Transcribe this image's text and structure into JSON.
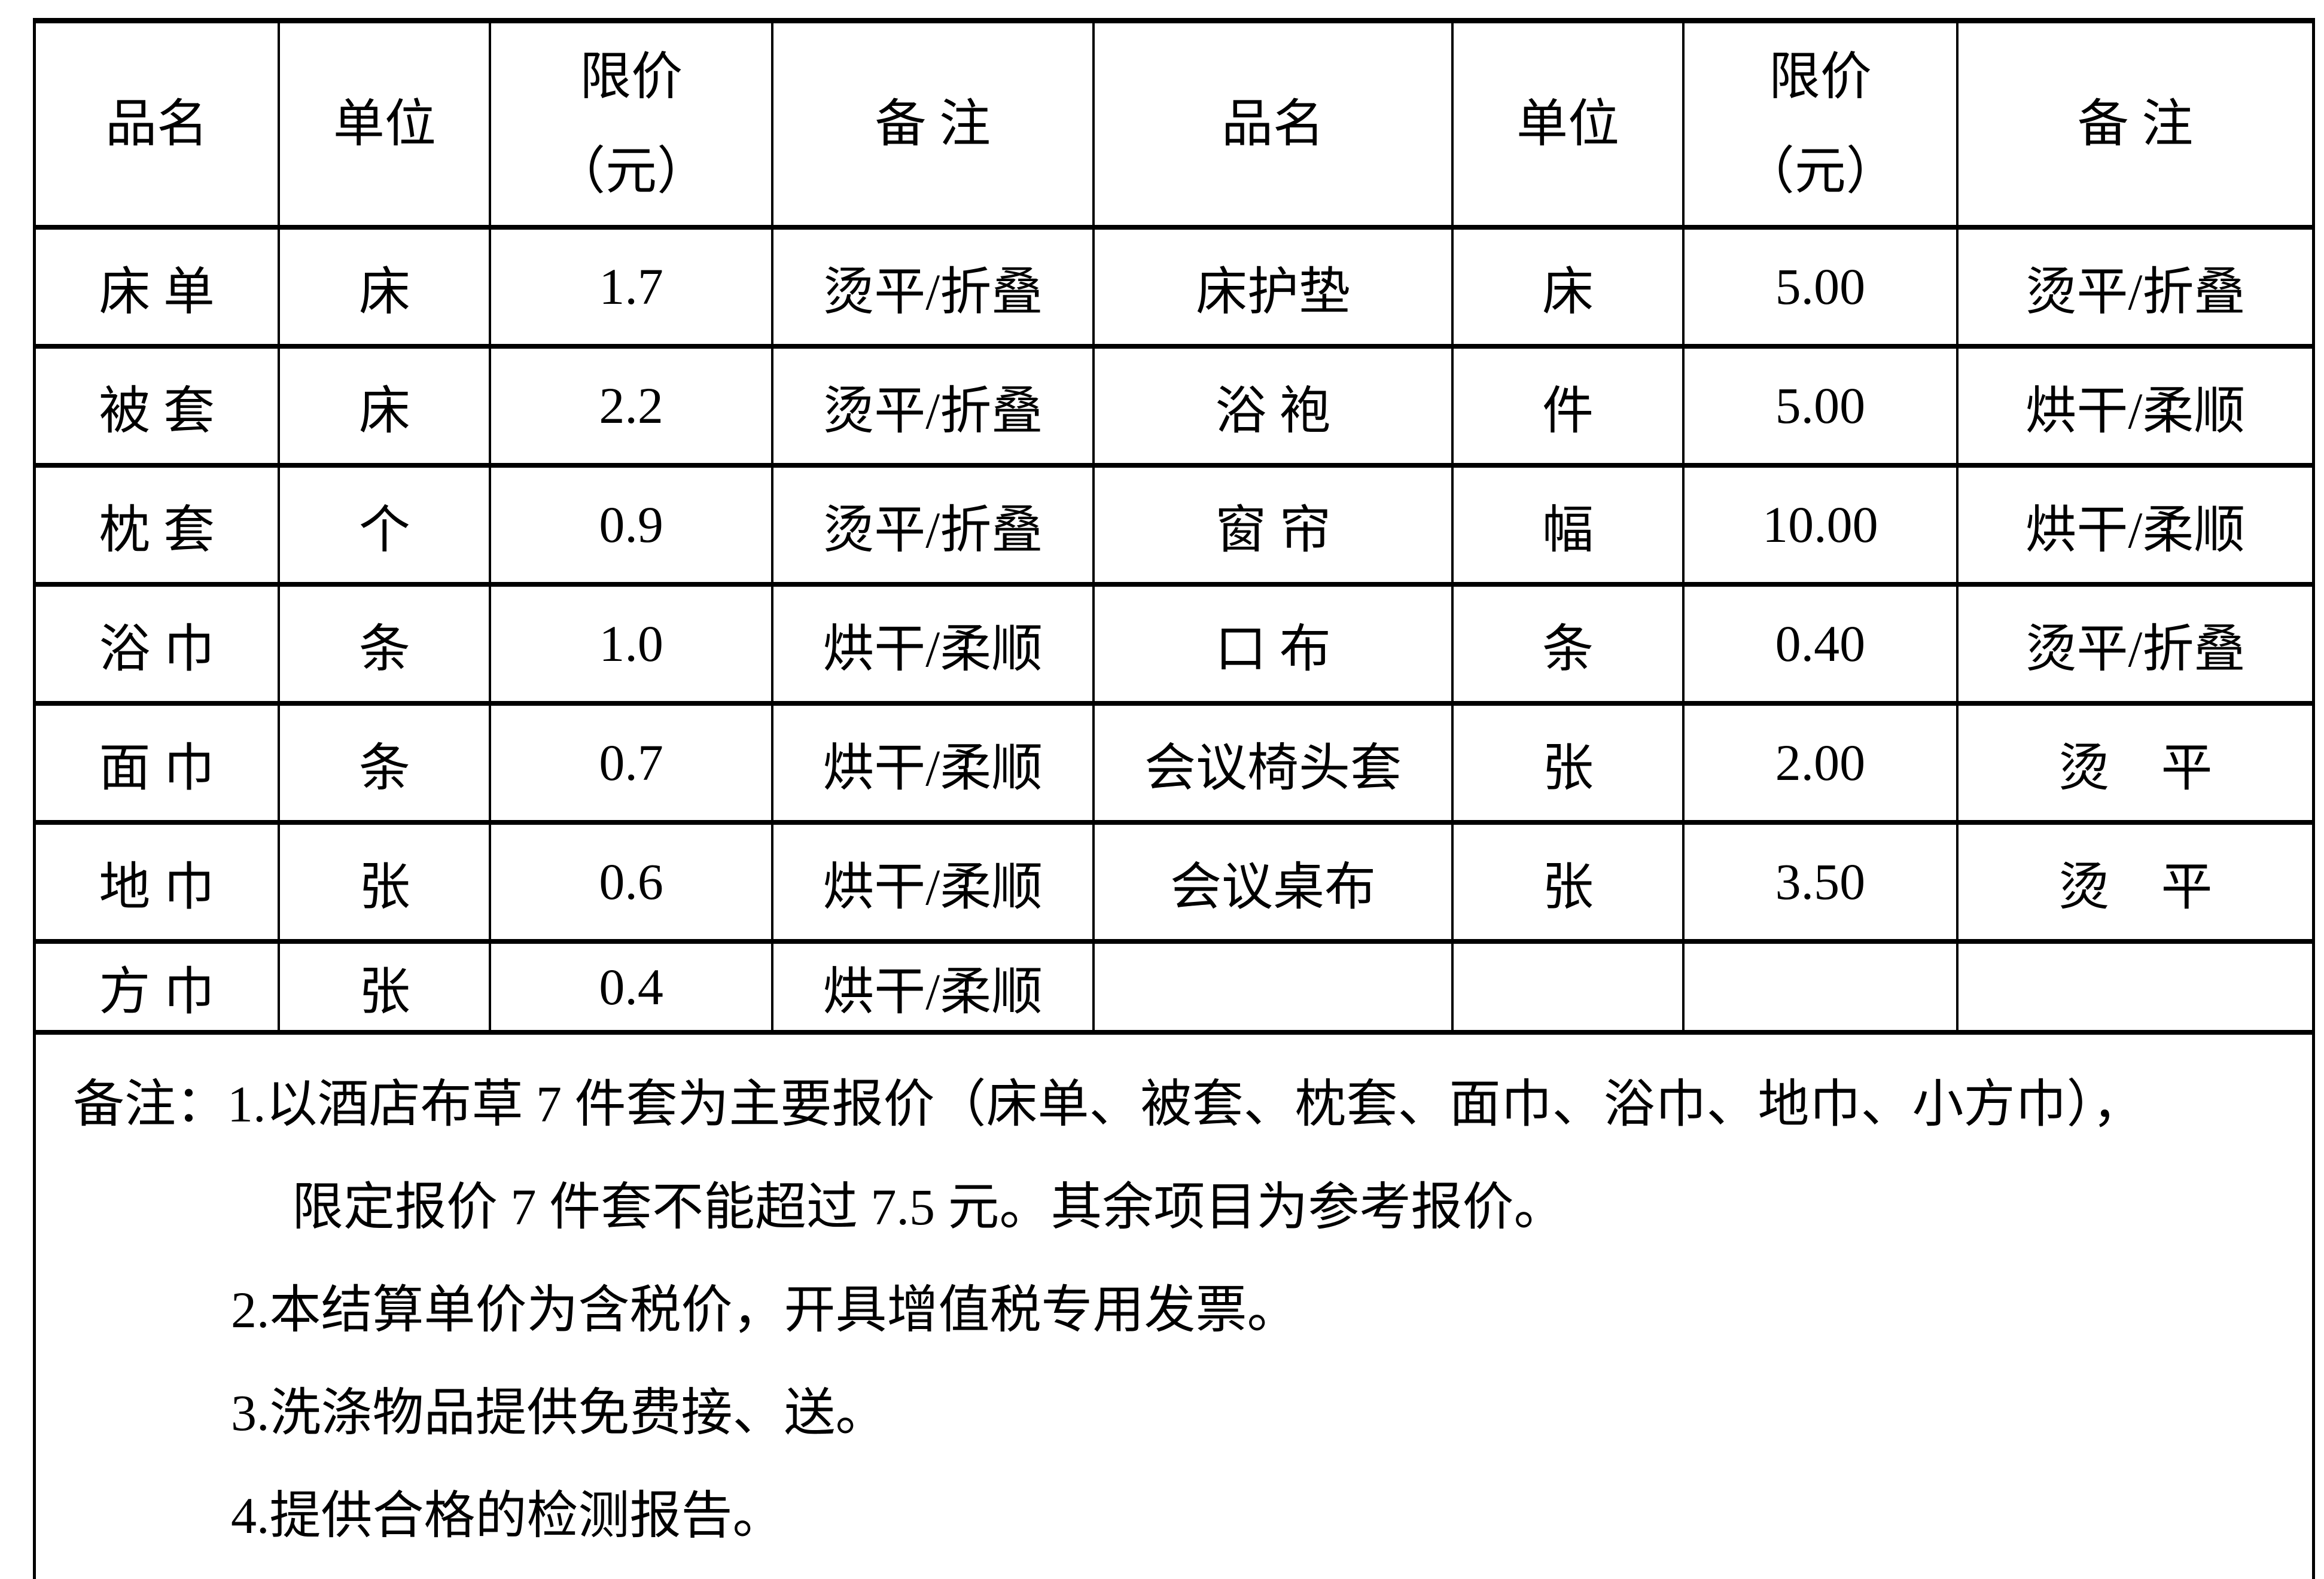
{
  "page": {
    "background": "#ffffff",
    "text_color": "#000000",
    "border_color": "#000000"
  },
  "table": {
    "header": [
      "品名",
      "单位",
      "限价\n（元）",
      "备 注",
      "品名",
      "单位",
      "限价\n（元）",
      "备 注"
    ],
    "rows": [
      [
        "床 单",
        "床",
        "1.7",
        "烫平/折叠",
        "床护垫",
        "床",
        "5.00",
        "烫平/折叠"
      ],
      [
        "被 套",
        "床",
        "2.2",
        "烫平/折叠",
        "浴 袍",
        "件",
        "5.00",
        "烘干/柔顺"
      ],
      [
        "枕 套",
        "个",
        "0.9",
        "烫平/折叠",
        "窗 帘",
        "幅",
        "10.00",
        "烘干/柔顺"
      ],
      [
        "浴 巾",
        "条",
        "1.0",
        "烘干/柔顺",
        "口 布",
        "条",
        "0.40",
        "烫平/折叠"
      ],
      [
        "面 巾",
        "条",
        "0.7",
        "烘干/柔顺",
        "会议椅头套",
        "张",
        "2.00",
        "烫　平"
      ],
      [
        "地 巾",
        "张",
        "0.6",
        "烘干/柔顺",
        "会议桌布",
        "张",
        "3.50",
        "烫　平"
      ],
      [
        "方 巾",
        "张",
        "0.4",
        "烘干/柔顺",
        "",
        "",
        "",
        ""
      ]
    ]
  },
  "notes": {
    "lines": [
      "备注：1.以酒店布草 7 件套为主要报价（床单、被套、枕套、面巾、浴巾、地巾、小方巾），",
      "限定报价 7 件套不能超过 7.5 元。其余项目为参考报价。",
      "2.本结算单价为含税价，开具增值税专用发票。",
      "3.洗涤物品提供免费接、送。",
      "4.提供合格的检测报告。"
    ]
  }
}
